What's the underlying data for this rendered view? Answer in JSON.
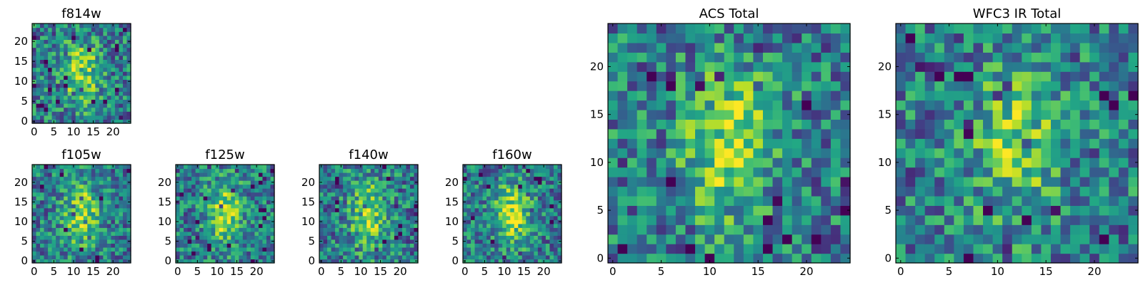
{
  "chart_data": [
    {
      "type": "heatmap",
      "title": "f814w",
      "grid_size": 25,
      "xticks": [
        0,
        5,
        10,
        15,
        20
      ],
      "yticks": [
        0,
        5,
        10,
        15,
        20
      ],
      "colormap": "viridis",
      "seed": 814,
      "noise": 0.3,
      "blob_strength": 0.85,
      "grid": false
    },
    {
      "type": "heatmap",
      "title": "f105w",
      "grid_size": 25,
      "xticks": [
        0,
        5,
        10,
        15,
        20
      ],
      "yticks": [
        0,
        5,
        10,
        15,
        20
      ],
      "colormap": "viridis",
      "seed": 105,
      "noise": 0.28,
      "blob_strength": 0.8,
      "grid": false
    },
    {
      "type": "heatmap",
      "title": "f125w",
      "grid_size": 25,
      "xticks": [
        0,
        5,
        10,
        15,
        20
      ],
      "yticks": [
        0,
        5,
        10,
        15,
        20
      ],
      "colormap": "viridis",
      "seed": 125,
      "noise": 0.28,
      "blob_strength": 0.8,
      "grid": false
    },
    {
      "type": "heatmap",
      "title": "f140w",
      "grid_size": 25,
      "xticks": [
        0,
        5,
        10,
        15,
        20
      ],
      "yticks": [
        0,
        5,
        10,
        15,
        20
      ],
      "colormap": "viridis",
      "seed": 140,
      "noise": 0.3,
      "blob_strength": 0.8,
      "grid": false
    },
    {
      "type": "heatmap",
      "title": "f160w",
      "grid_size": 25,
      "xticks": [
        0,
        5,
        10,
        15,
        20
      ],
      "yticks": [
        0,
        5,
        10,
        15,
        20
      ],
      "colormap": "viridis",
      "seed": 160,
      "noise": 0.28,
      "blob_strength": 0.85,
      "grid": false
    },
    {
      "type": "heatmap",
      "title": "ACS Total",
      "grid_size": 25,
      "xticks": [
        0,
        5,
        10,
        15,
        20
      ],
      "yticks": [
        0,
        5,
        10,
        15,
        20
      ],
      "colormap": "viridis",
      "seed": 901,
      "noise": 0.3,
      "blob_strength": 0.8,
      "grid": false
    },
    {
      "type": "heatmap",
      "title": "WFC3 IR Total",
      "grid_size": 25,
      "xticks": [
        0,
        5,
        10,
        15,
        20
      ],
      "yticks": [
        0,
        5,
        10,
        15,
        20
      ],
      "colormap": "viridis",
      "seed": 902,
      "noise": 0.3,
      "blob_strength": 0.7,
      "grid": false
    }
  ]
}
